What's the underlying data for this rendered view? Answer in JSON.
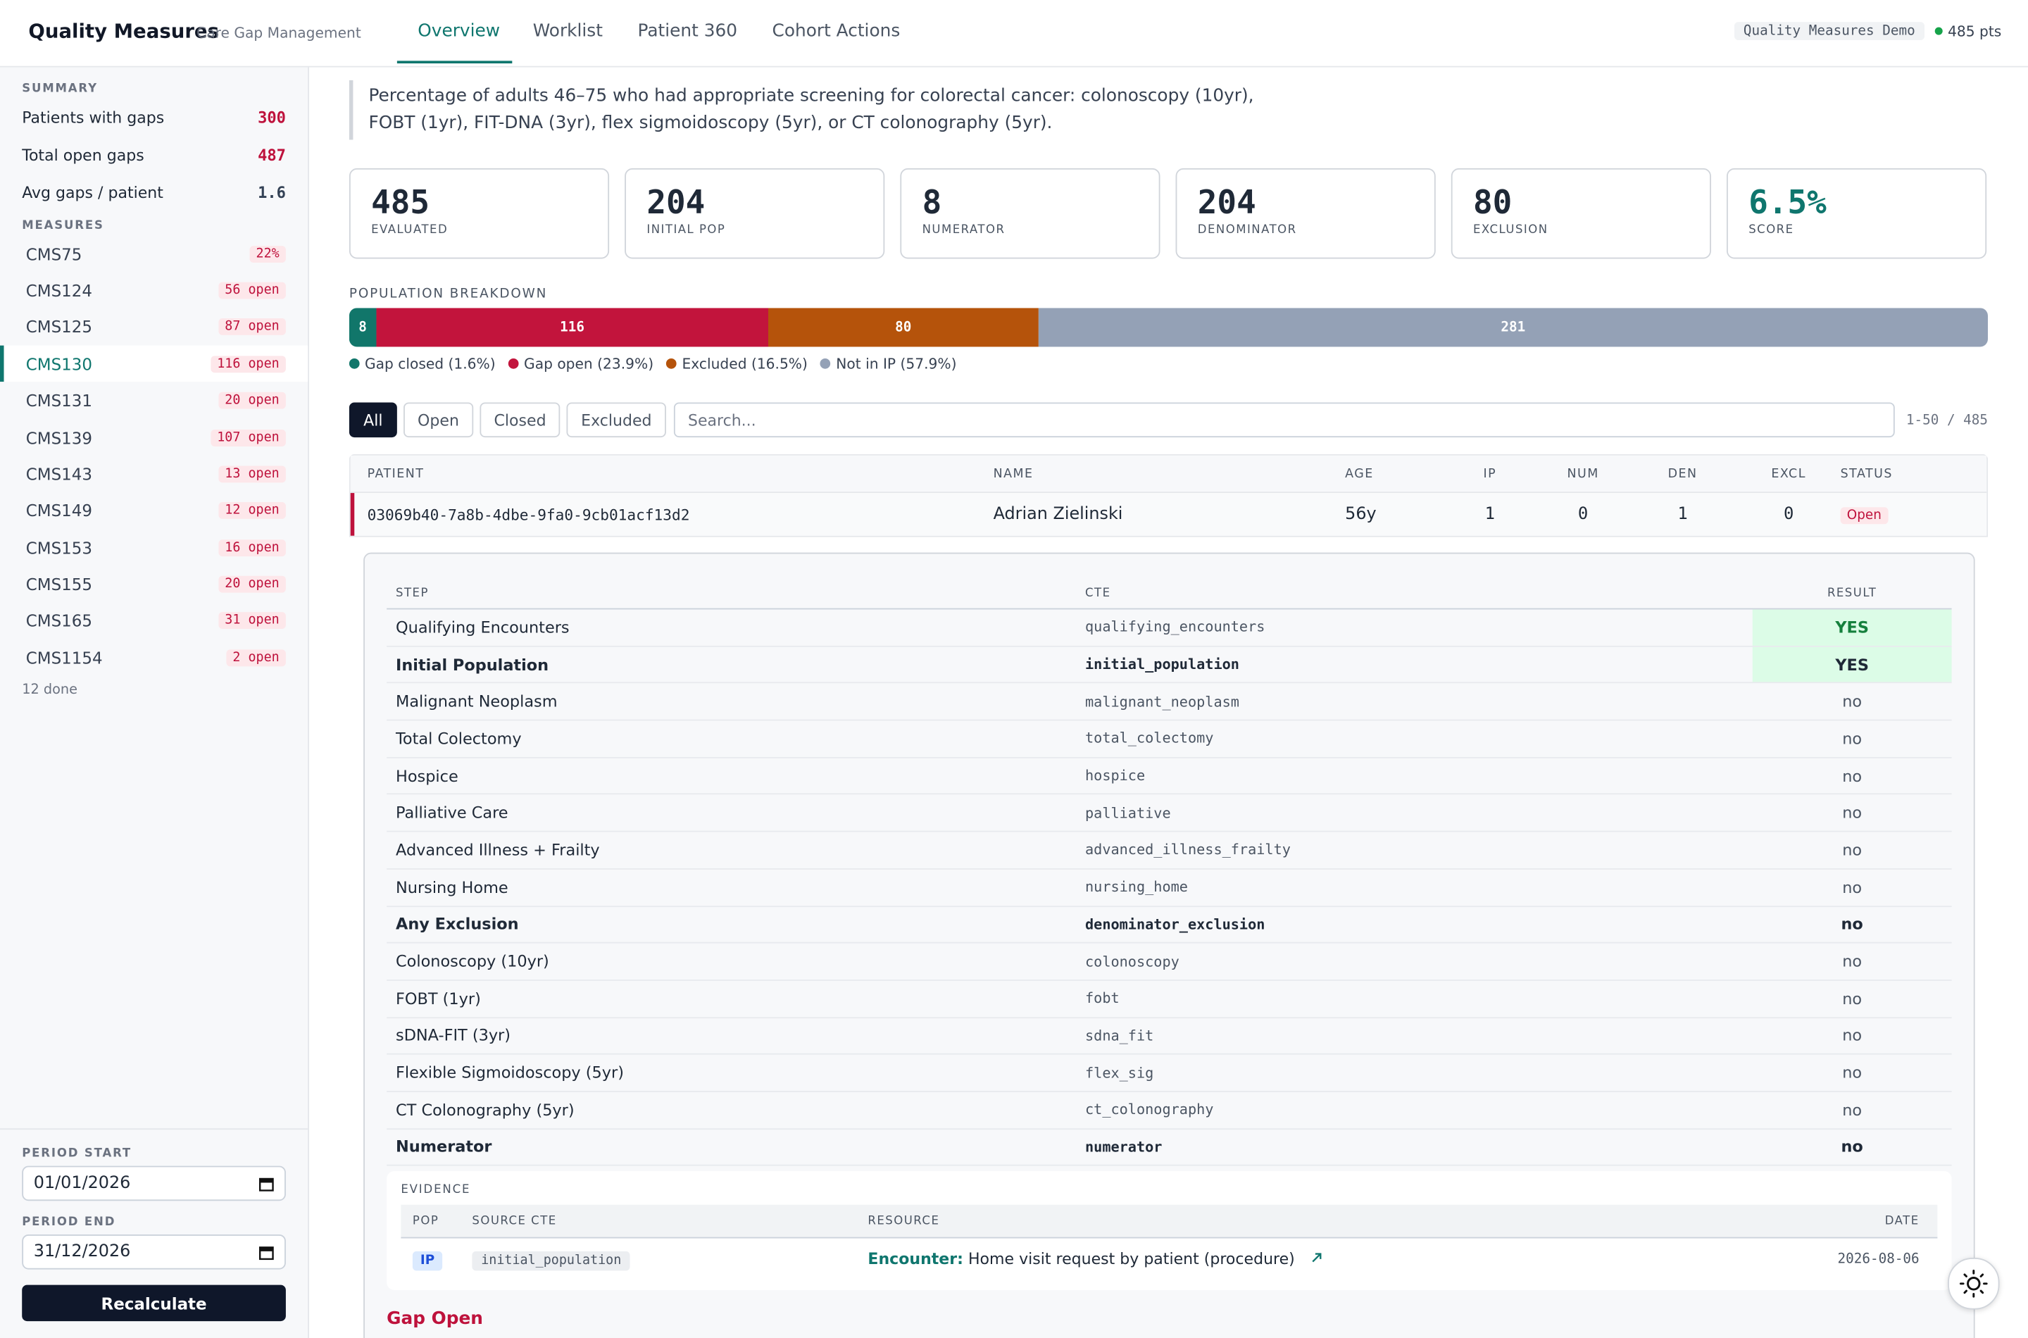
{
  "header": {
    "title": "Quality Measures",
    "subtitle": "Care Gap Management",
    "tabs": [
      "Overview",
      "Worklist",
      "Patient 360",
      "Cohort Actions"
    ],
    "active_tab": 0,
    "demo": "Quality Measures Demo",
    "points": "485 pts"
  },
  "sidebar": {
    "summary_label": "SUMMARY",
    "summary": [
      {
        "label": "Patients with gaps",
        "value": "300",
        "color": "#be123c"
      },
      {
        "label": "Total open gaps",
        "value": "487",
        "color": "#be123c"
      },
      {
        "label": "Avg gaps / patient",
        "value": "1.6",
        "color": "#334155"
      }
    ],
    "measures_label": "MEASURES",
    "measures": [
      {
        "name": "CMS75",
        "badge": "22%"
      },
      {
        "name": "CMS124",
        "badge": "56 open"
      },
      {
        "name": "CMS125",
        "badge": "87 open"
      },
      {
        "name": "CMS130",
        "badge": "116 open"
      },
      {
        "name": "CMS131",
        "badge": "20 open"
      },
      {
        "name": "CMS139",
        "badge": "107 open"
      },
      {
        "name": "CMS143",
        "badge": "13 open"
      },
      {
        "name": "CMS149",
        "badge": "12 open"
      },
      {
        "name": "CMS153",
        "badge": "16 open"
      },
      {
        "name": "CMS155",
        "badge": "20 open"
      },
      {
        "name": "CMS165",
        "badge": "31 open"
      },
      {
        "name": "CMS1154",
        "badge": "2 open"
      }
    ],
    "active_measure": 3,
    "done": "12 done",
    "period_start_label": "PERIOD START",
    "period_start": "01/01/2026",
    "period_end_label": "PERIOD END",
    "period_end": "31/12/2026",
    "button": "Recalculate"
  },
  "description": "Percentage of adults 46–75 who had appropriate screening for colorectal cancer: colonoscopy (10yr), FOBT (1yr), FIT-DNA (3yr), flex sigmoidoscopy (5yr), or CT colonography (5yr).",
  "stats": [
    {
      "value": "485",
      "label": "EVALUATED"
    },
    {
      "value": "204",
      "label": "INITIAL POP"
    },
    {
      "value": "8",
      "label": "NUMERATOR"
    },
    {
      "value": "204",
      "label": "DENOMINATOR"
    },
    {
      "value": "80",
      "label": "EXCLUSION"
    },
    {
      "value": "6.5%",
      "label": "SCORE",
      "color": "#0f766e"
    }
  ],
  "breakdown": {
    "title": "POPULATION BREAKDOWN",
    "segments": [
      {
        "name": "Gap closed (1.6%)",
        "value": 8,
        "color": "#11766a"
      },
      {
        "name": "Gap open (23.9%)",
        "value": 116,
        "color": "#c2143c"
      },
      {
        "name": "Excluded (16.5%)",
        "value": 80,
        "color": "#b5530b"
      },
      {
        "name": "Not in IP (57.9%)",
        "value": 281,
        "color": "#94a1b6"
      }
    ]
  },
  "filters": [
    "All",
    "Open",
    "Closed",
    "Excluded"
  ],
  "active_filter": 0,
  "search_placeholder": "Search...",
  "count": "1-50 / 485",
  "patients": {
    "headers": [
      "PATIENT",
      "NAME",
      "AGE",
      "IP",
      "NUM",
      "DEN",
      "EXCL",
      "STATUS"
    ],
    "rows": [
      [
        "03069b40-7a8b-4dbe-9fa0-9cb01acf13d2",
        "Adrian Zielinski",
        "56y",
        "1",
        "0",
        "1",
        "0",
        "Open"
      ]
    ]
  },
  "steps": {
    "headers": [
      "STEP",
      "CTE",
      "RESULT"
    ],
    "rows": [
      {
        "step": "Qualifying Encounters",
        "cte": "qualifying_encounters",
        "result": "YES",
        "highlight": true,
        "bold": false
      },
      {
        "step": "Initial Population",
        "cte": "initial_population",
        "result": "YES",
        "highlight": true,
        "bold": true
      },
      {
        "step": "Malignant Neoplasm",
        "cte": "malignant_neoplasm",
        "result": "no",
        "highlight": false,
        "bold": false
      },
      {
        "step": "Total Colectomy",
        "cte": "total_colectomy",
        "result": "no",
        "highlight": false,
        "bold": false
      },
      {
        "step": "Hospice",
        "cte": "hospice",
        "result": "no",
        "highlight": false,
        "bold": false
      },
      {
        "step": "Palliative Care",
        "cte": "palliative",
        "result": "no",
        "highlight": false,
        "bold": false
      },
      {
        "step": "Advanced Illness + Frailty",
        "cte": "advanced_illness_frailty",
        "result": "no",
        "highlight": false,
        "bold": false
      },
      {
        "step": "Nursing Home",
        "cte": "nursing_home",
        "result": "no",
        "highlight": false,
        "bold": false
      },
      {
        "step": "Any Exclusion",
        "cte": "denominator_exclusion",
        "result": "no",
        "highlight": false,
        "bold": true
      },
      {
        "step": "Colonoscopy (10yr)",
        "cte": "colonoscopy",
        "result": "no",
        "highlight": false,
        "bold": false
      },
      {
        "step": "FOBT (1yr)",
        "cte": "fobt",
        "result": "no",
        "highlight": false,
        "bold": false
      },
      {
        "step": "sDNA-FIT (3yr)",
        "cte": "sdna_fit",
        "result": "no",
        "highlight": false,
        "bold": false
      },
      {
        "step": "Flexible Sigmoidoscopy (5yr)",
        "cte": "flex_sig",
        "result": "no",
        "highlight": false,
        "bold": false
      },
      {
        "step": "CT Colonography (5yr)",
        "cte": "ct_colonography",
        "result": "no",
        "highlight": false,
        "bold": false
      },
      {
        "step": "Numerator",
        "cte": "numerator",
        "result": "no",
        "highlight": false,
        "bold": true
      }
    ]
  },
  "evidence": {
    "label": "EVIDENCE",
    "headers": [
      "POP",
      "SOURCE CTE",
      "RESOURCE",
      "DATE"
    ],
    "rows": [
      {
        "pop": "IP",
        "cte": "initial_population",
        "resource_type": "Encounter:",
        "resource": "Home visit request by patient (procedure)",
        "date": "2026-08-06"
      }
    ]
  },
  "outcome": "Gap Open"
}
